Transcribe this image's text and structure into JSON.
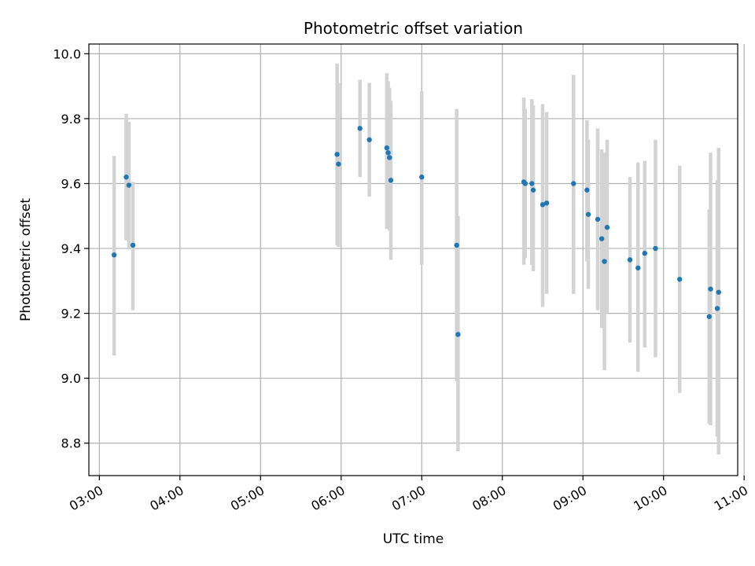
{
  "chart_data": {
    "type": "scatter",
    "title": "Photometric offset variation",
    "xlabel": "UTC time",
    "ylabel": "Photometric offset",
    "x_unit": "hours UTC",
    "xlim": [
      2.87,
      10.92
    ],
    "ylim": [
      8.7,
      10.03
    ],
    "x_ticks": [
      3,
      4,
      5,
      6,
      7,
      8,
      9,
      10,
      11
    ],
    "x_tick_labels": [
      "03:00",
      "04:00",
      "05:00",
      "06:00",
      "07:00",
      "08:00",
      "09:00",
      "10:00",
      "11:00"
    ],
    "y_ticks": [
      8.8,
      9.0,
      9.2,
      9.4,
      9.6,
      9.8,
      10.0
    ],
    "y_tick_labels": [
      "8.8",
      "9.0",
      "9.2",
      "9.4",
      "9.6",
      "9.8",
      "10.0"
    ],
    "grid": true,
    "marker_color": "#1f77b4",
    "errorbar_color": "#d3d3d3",
    "points": [
      {
        "x": "03:11",
        "y": 9.38,
        "ylo": 9.07,
        "yhi": 9.685
      },
      {
        "x": "03:20",
        "y": 9.62,
        "ylo": 9.425,
        "yhi": 9.815
      },
      {
        "x": "03:22",
        "y": 9.595,
        "ylo": 9.4,
        "yhi": 9.79
      },
      {
        "x": "03:25",
        "y": 9.41,
        "ylo": 9.21,
        "yhi": 9.605
      },
      {
        "x": "05:57",
        "y": 9.69,
        "ylo": 9.41,
        "yhi": 9.97
      },
      {
        "x": "05:58",
        "y": 9.66,
        "ylo": 9.405,
        "yhi": 9.91
      },
      {
        "x": "06:14",
        "y": 9.77,
        "ylo": 9.62,
        "yhi": 9.92
      },
      {
        "x": "06:21",
        "y": 9.735,
        "ylo": 9.56,
        "yhi": 9.91
      },
      {
        "x": "06:34",
        "y": 9.71,
        "ylo": 9.46,
        "yhi": 9.94
      },
      {
        "x": "06:35",
        "y": 9.695,
        "ylo": 9.47,
        "yhi": 9.915
      },
      {
        "x": "06:36",
        "y": 9.68,
        "ylo": 9.455,
        "yhi": 9.895
      },
      {
        "x": "06:37",
        "y": 9.61,
        "ylo": 9.365,
        "yhi": 9.855
      },
      {
        "x": "07:00",
        "y": 9.62,
        "ylo": 9.35,
        "yhi": 9.885
      },
      {
        "x": "07:26",
        "y": 9.41,
        "ylo": 8.99,
        "yhi": 9.83
      },
      {
        "x": "07:27",
        "y": 9.135,
        "ylo": 8.775,
        "yhi": 9.5
      },
      {
        "x": "08:16",
        "y": 9.605,
        "ylo": 9.35,
        "yhi": 9.865
      },
      {
        "x": "08:17",
        "y": 9.6,
        "ylo": 9.37,
        "yhi": 9.83
      },
      {
        "x": "08:22",
        "y": 9.6,
        "ylo": 9.35,
        "yhi": 9.86
      },
      {
        "x": "08:23",
        "y": 9.58,
        "ylo": 9.33,
        "yhi": 9.84
      },
      {
        "x": "08:30",
        "y": 9.535,
        "ylo": 9.22,
        "yhi": 9.845
      },
      {
        "x": "08:33",
        "y": 9.54,
        "ylo": 9.26,
        "yhi": 9.82
      },
      {
        "x": "08:53",
        "y": 9.6,
        "ylo": 9.26,
        "yhi": 9.935
      },
      {
        "x": "09:03",
        "y": 9.58,
        "ylo": 9.36,
        "yhi": 9.795
      },
      {
        "x": "09:04",
        "y": 9.505,
        "ylo": 9.275,
        "yhi": 9.735
      },
      {
        "x": "09:11",
        "y": 9.49,
        "ylo": 9.21,
        "yhi": 9.77
      },
      {
        "x": "09:14",
        "y": 9.43,
        "ylo": 9.155,
        "yhi": 9.705
      },
      {
        "x": "09:16",
        "y": 9.36,
        "ylo": 9.025,
        "yhi": 9.695
      },
      {
        "x": "09:18",
        "y": 9.465,
        "ylo": 9.2,
        "yhi": 9.735
      },
      {
        "x": "09:35",
        "y": 9.365,
        "ylo": 9.11,
        "yhi": 9.62
      },
      {
        "x": "09:41",
        "y": 9.34,
        "ylo": 9.02,
        "yhi": 9.665
      },
      {
        "x": "09:46",
        "y": 9.385,
        "ylo": 9.095,
        "yhi": 9.67
      },
      {
        "x": "09:54",
        "y": 9.4,
        "ylo": 9.065,
        "yhi": 9.735
      },
      {
        "x": "10:12",
        "y": 9.305,
        "ylo": 8.955,
        "yhi": 9.655
      },
      {
        "x": "10:34",
        "y": 9.19,
        "ylo": 8.86,
        "yhi": 9.52
      },
      {
        "x": "10:35",
        "y": 9.275,
        "ylo": 8.855,
        "yhi": 9.695
      },
      {
        "x": "10:40",
        "y": 9.215,
        "ylo": 8.82,
        "yhi": 9.61
      },
      {
        "x": "10:41",
        "y": 9.265,
        "ylo": 8.765,
        "yhi": 9.71
      }
    ]
  }
}
